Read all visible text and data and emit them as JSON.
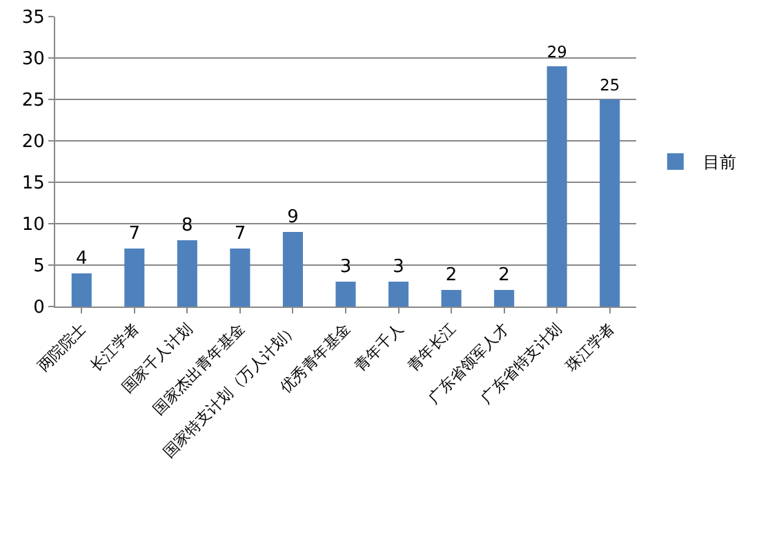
{
  "chart_data": {
    "type": "bar",
    "categories": [
      "两院院士",
      "长江学者",
      "国家千人计划",
      "国家杰出青年基金",
      "国家特支计划（万人计划）",
      "优秀青年基金",
      "青年千人",
      "青年长江",
      "广东省领军人才",
      "广东省特支计划",
      "珠江学者"
    ],
    "series": [
      {
        "name": "目前",
        "color": "#4f81bd",
        "values": [
          4,
          7,
          8,
          7,
          9,
          3,
          3,
          2,
          2,
          29,
          25
        ]
      }
    ],
    "ylim": [
      0,
      35
    ],
    "yticks": [
      0,
      5,
      10,
      15,
      20,
      25,
      30,
      35
    ],
    "grid": "y",
    "legend": "right",
    "data_labels": true
  }
}
